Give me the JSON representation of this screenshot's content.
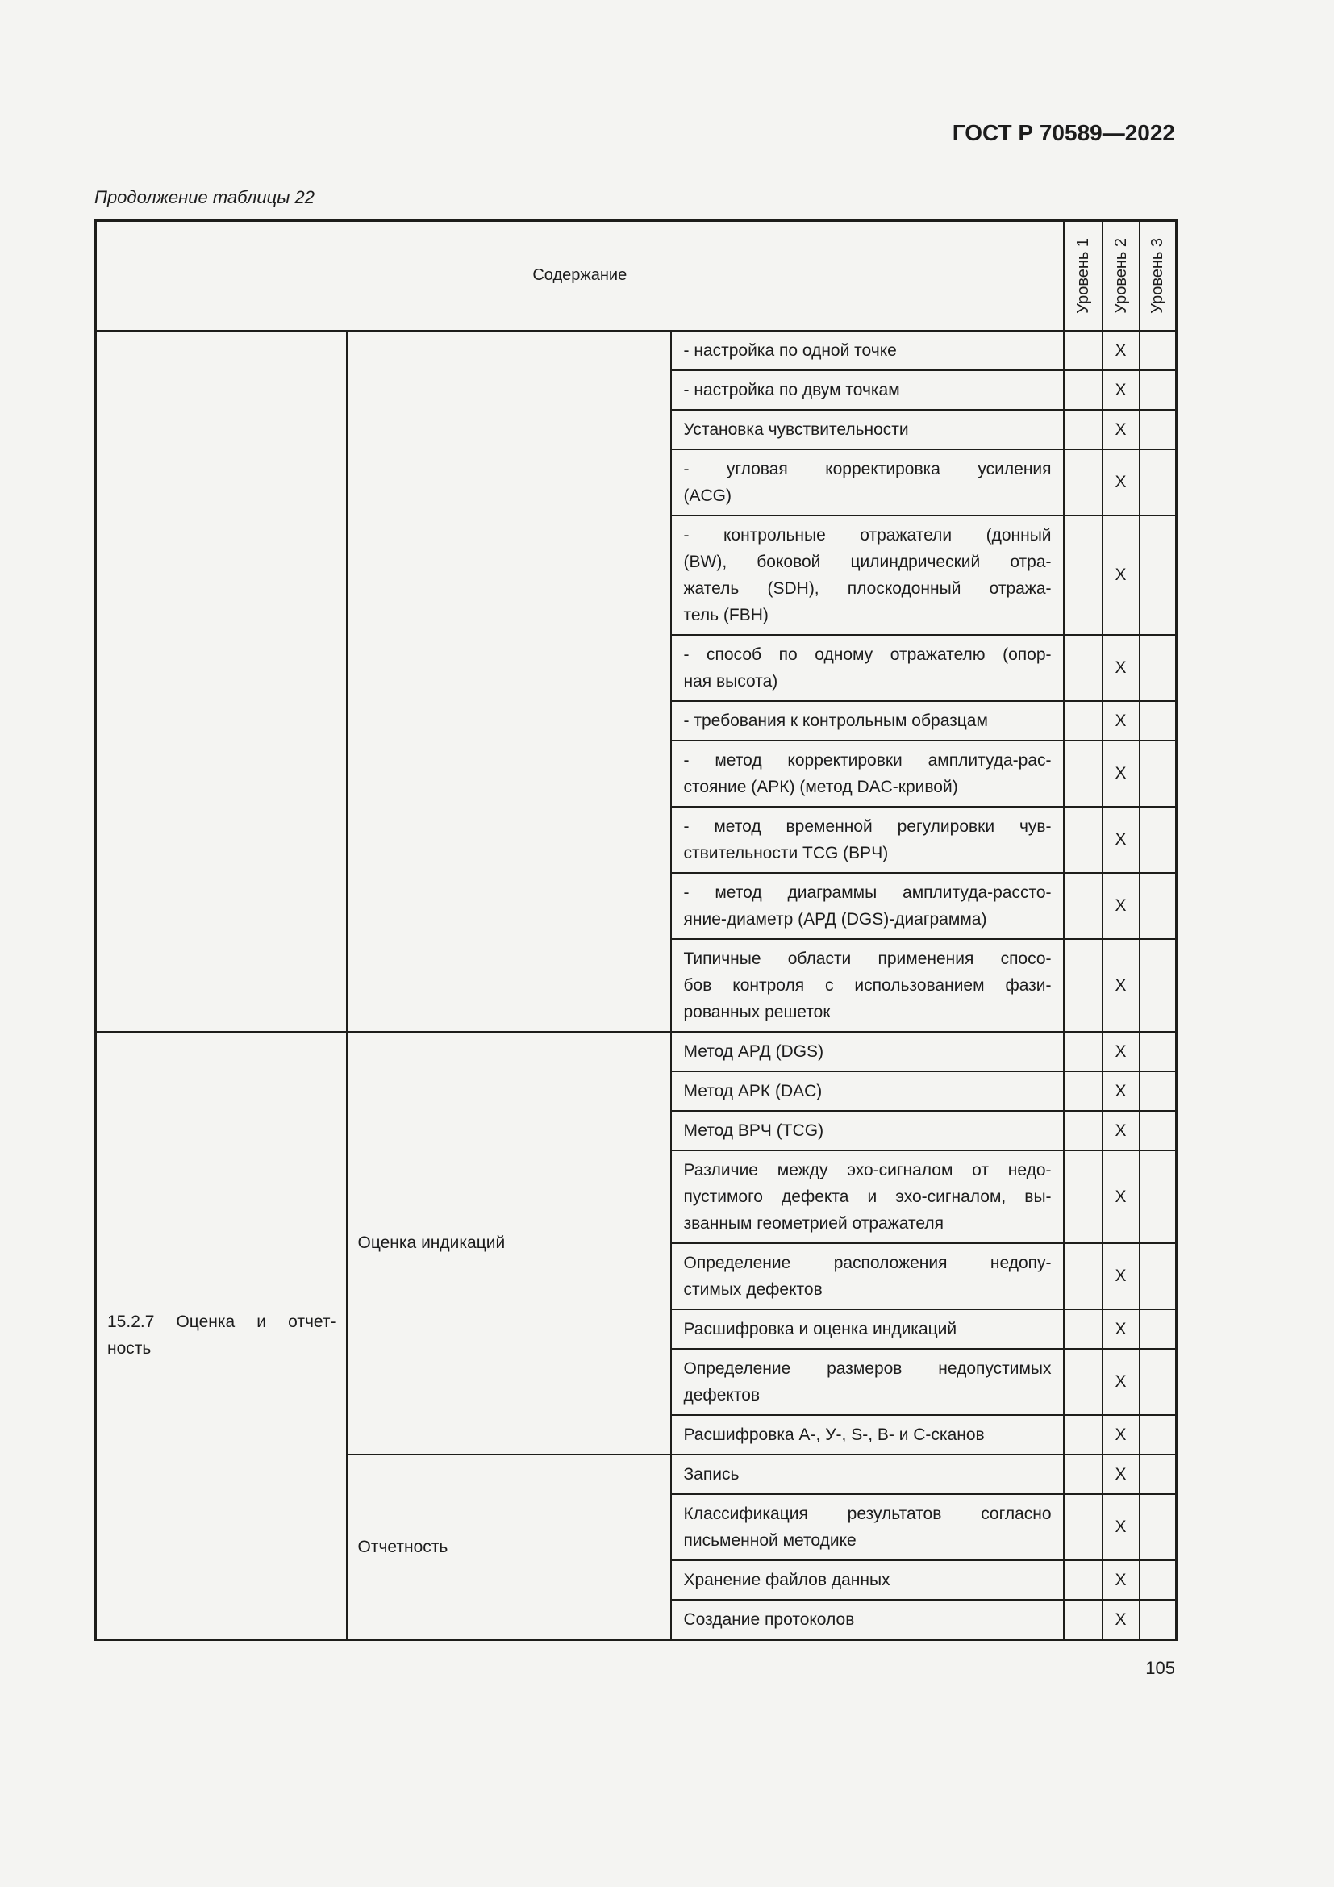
{
  "page": {
    "doc_code": "ГОСТ Р 70589—2022",
    "table_caption": "Продолжение таблицы 22",
    "page_number": "105"
  },
  "colors": {
    "text": "#1c1c1c",
    "border": "#1d1d1b",
    "background": "#f4f4f2"
  },
  "table": {
    "content_header": "Содержание",
    "level_headers": [
      "Уровень 1",
      "Уровень 2",
      "Уровень 3"
    ],
    "sections": {
      "continuation": {
        "col1": "",
        "col2": ""
      },
      "evaluation": {
        "col1": "15.2.7 Оценка и отчет-\nность",
        "col2": "Оценка индикаций"
      },
      "reporting": {
        "col2": "Отчетность"
      }
    },
    "rows": [
      {
        "content": "- настройка по одной точке",
        "level1": "",
        "level2": "X",
        "level3": ""
      },
      {
        "content": "- настройка по двум точкам",
        "level1": "",
        "level2": "X",
        "level3": ""
      },
      {
        "content": "Установка чувствительности",
        "level1": "",
        "level2": "X",
        "level3": ""
      },
      {
        "content": "- угловая корректировка усиления\n(ACG)",
        "level1": "",
        "level2": "X",
        "level3": ""
      },
      {
        "content": "- контрольные отражатели (донный\n(BW), боковой цилиндрический отра-\nжатель (SDH), плоскодонный отража-\nтель (FBH)",
        "level1": "",
        "level2": "X",
        "level3": ""
      },
      {
        "content": "- способ по одному отражателю (опор-\nная высота)",
        "level1": "",
        "level2": "X",
        "level3": ""
      },
      {
        "content": "- требования к контрольным образцам",
        "level1": "",
        "level2": "X",
        "level3": ""
      },
      {
        "content": "- метод корректировки амплитуда-рас-\nстояние (АРК) (метод DAC-кривой)",
        "level1": "",
        "level2": "X",
        "level3": ""
      },
      {
        "content": "- метод временной регулировки чув-\nствительности TCG (ВРЧ)",
        "level1": "",
        "level2": "X",
        "level3": ""
      },
      {
        "content": "- метод диаграммы амплитуда-рассто-\nяние-диаметр (АРД (DGS)-диаграмма)",
        "level1": "",
        "level2": "X",
        "level3": ""
      },
      {
        "content": "Типичные области применения спосо-\nбов контроля с использованием фази-\nрованных решеток",
        "level1": "",
        "level2": "X",
        "level3": ""
      },
      {
        "content": "Метод АРД (DGS)",
        "level1": "",
        "level2": "X",
        "level3": ""
      },
      {
        "content": "Метод АРК (DAC)",
        "level1": "",
        "level2": "X",
        "level3": ""
      },
      {
        "content": "Метод ВРЧ (TCG)",
        "level1": "",
        "level2": "X",
        "level3": ""
      },
      {
        "content": "Различие между эхо-сигналом от недо-\nпустимого дефекта и эхо-сигналом, вы-\nзванным геометрией отражателя",
        "level1": "",
        "level2": "X",
        "level3": ""
      },
      {
        "content": "Определение расположения недопу-\nстимых дефектов",
        "level1": "",
        "level2": "X",
        "level3": ""
      },
      {
        "content": "Расшифровка и оценка индикаций",
        "level1": "",
        "level2": "X",
        "level3": ""
      },
      {
        "content": "Определение размеров недопустимых\nдефектов",
        "level1": "",
        "level2": "X",
        "level3": ""
      },
      {
        "content": "Расшифровка А-, У-, S-, В- и С-сканов",
        "level1": "",
        "level2": "X",
        "level3": ""
      },
      {
        "content": "Запись",
        "level1": "",
        "level2": "X",
        "level3": ""
      },
      {
        "content": "Классификация результатов согласно\nписьменной методике",
        "level1": "",
        "level2": "X",
        "level3": ""
      },
      {
        "content": "Хранение файлов данных",
        "level1": "",
        "level2": "X",
        "level3": ""
      },
      {
        "content": "Создание протоколов",
        "level1": "",
        "level2": "X",
        "level3": ""
      }
    ]
  }
}
